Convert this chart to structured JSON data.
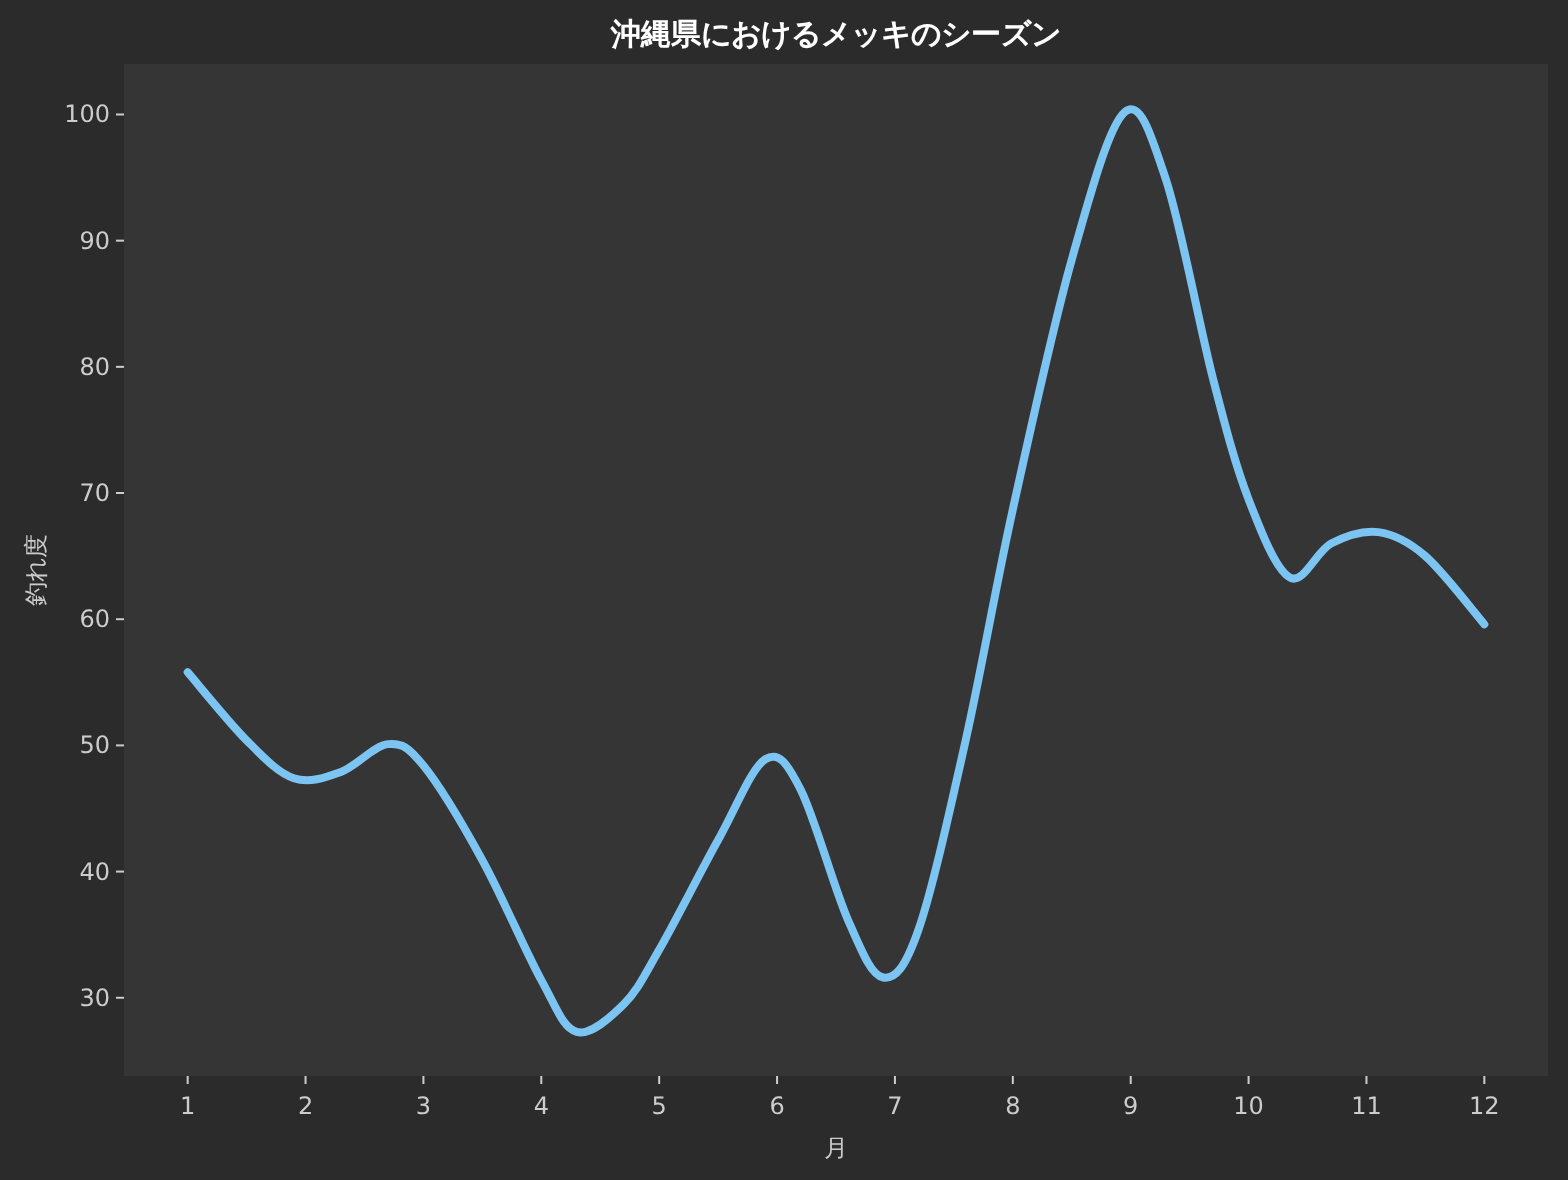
{
  "chart_data": {
    "type": "line",
    "title": "沖縄県におけるメッキのシーズン",
    "xlabel": "月",
    "ylabel": "釣れ度",
    "xlim": [
      0.46,
      12.54
    ],
    "ylim": [
      23.8,
      104
    ],
    "xticks": [
      1,
      2,
      3,
      4,
      5,
      6,
      7,
      8,
      9,
      10,
      11,
      12
    ],
    "yticks": [
      30,
      40,
      50,
      60,
      70,
      80,
      90,
      100
    ],
    "series": [
      {
        "color": "#7cc4f2",
        "x": [
          1,
          1.5,
          1.9,
          2.3,
          2.7,
          3,
          3.5,
          4,
          4.3,
          4.7,
          5,
          5.5,
          5.9,
          6.2,
          6.6,
          6.9,
          7.2,
          7.6,
          8,
          8.5,
          8.95,
          9.3,
          9.7,
          10,
          10.35,
          10.7,
          11.1,
          11.5,
          12
        ],
        "values": [
          55.8,
          50.4,
          47.4,
          47.9,
          50.1,
          48.4,
          40.9,
          31.4,
          27.3,
          29.5,
          33.8,
          42.5,
          48.9,
          46.5,
          36.2,
          31.6,
          35.4,
          50.4,
          68.7,
          88.5,
          100.2,
          94.8,
          79,
          69.5,
          63.3,
          66,
          66.9,
          65,
          59.6
        ]
      }
    ]
  }
}
